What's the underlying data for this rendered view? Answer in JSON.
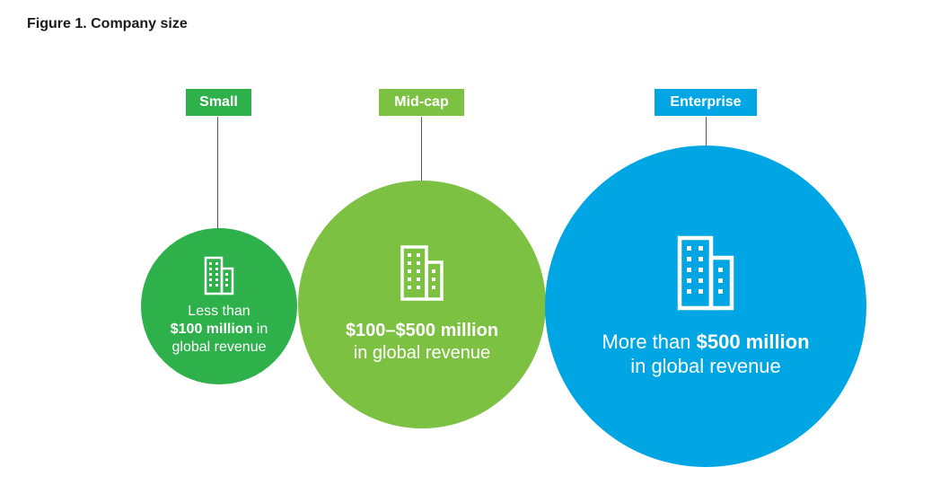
{
  "figure": {
    "title": "Figure 1. Company size"
  },
  "colors": {
    "small": "#2EB04B",
    "midcap": "#7DC142",
    "enterprise": "#00A6E3"
  },
  "segments": [
    {
      "label": "Small",
      "icon": "building-icon",
      "line1_plain": "Less than",
      "line2_bold": "$100 million",
      "line2_plain": " in",
      "line3_plain": "global revenue"
    },
    {
      "label": "Mid-cap",
      "icon": "building-icon",
      "line1_bold": "$100–$500 million",
      "line2_plain": "in global revenue"
    },
    {
      "label": "Enterprise",
      "icon": "building-icon",
      "line1_plain": "More than ",
      "line1_bold": "$500 million",
      "line2_plain": "in global revenue"
    }
  ]
}
